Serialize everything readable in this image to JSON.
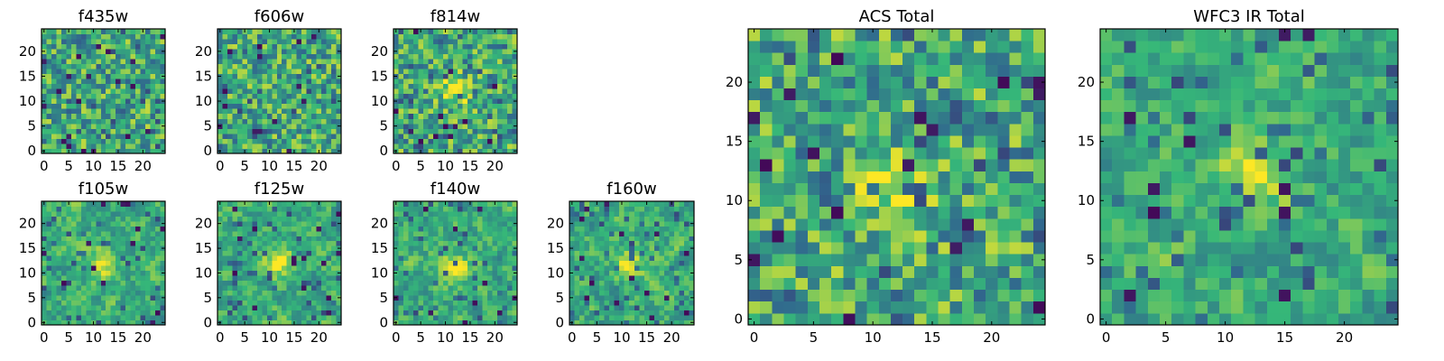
{
  "chart_data": {
    "type": "heatmap",
    "colormap": [
      "#440154",
      "#31688e",
      "#35b779",
      "#fde725"
    ],
    "panels": [
      {
        "title": "f435w",
        "grid_size": 25,
        "seed": 11,
        "smooth": 0,
        "hotspot": null,
        "xticks": [
          0,
          5,
          10,
          15,
          20
        ],
        "yticks": [
          0,
          5,
          10,
          15,
          20
        ],
        "xlim": [
          0,
          24
        ],
        "ylim": [
          0,
          24
        ]
      },
      {
        "title": "f606w",
        "grid_size": 25,
        "seed": 23,
        "smooth": 0,
        "hotspot": null,
        "xticks": [
          0,
          5,
          10,
          15,
          20
        ],
        "yticks": [
          0,
          5,
          10,
          15,
          20
        ],
        "xlim": [
          0,
          24
        ],
        "ylim": [
          0,
          24
        ]
      },
      {
        "title": "f814w",
        "grid_size": 25,
        "seed": 37,
        "smooth": 0,
        "hotspot": [
          12,
          12
        ],
        "xticks": [
          0,
          5,
          10,
          15,
          20
        ],
        "yticks": [
          0,
          5,
          10,
          15,
          20
        ],
        "xlim": [
          0,
          24
        ],
        "ylim": [
          0,
          24
        ]
      },
      {
        "title": "f105w",
        "grid_size": 25,
        "seed": 41,
        "smooth": 1,
        "hotspot": [
          12,
          12
        ],
        "xticks": [
          0,
          5,
          10,
          15,
          20
        ],
        "yticks": [
          0,
          5,
          10,
          15,
          20
        ],
        "xlim": [
          0,
          24
        ],
        "ylim": [
          0,
          24
        ]
      },
      {
        "title": "f125w",
        "grid_size": 25,
        "seed": 53,
        "smooth": 1,
        "hotspot": [
          12,
          12
        ],
        "xticks": [
          0,
          5,
          10,
          15,
          20
        ],
        "yticks": [
          0,
          5,
          10,
          15,
          20
        ],
        "xlim": [
          0,
          24
        ],
        "ylim": [
          0,
          24
        ]
      },
      {
        "title": "f140w",
        "grid_size": 25,
        "seed": 67,
        "smooth": 1,
        "hotspot": [
          12,
          11
        ],
        "xticks": [
          0,
          5,
          10,
          15,
          20
        ],
        "yticks": [
          0,
          5,
          10,
          15,
          20
        ],
        "xlim": [
          0,
          24
        ],
        "ylim": [
          0,
          24
        ]
      },
      {
        "title": "f160w",
        "grid_size": 25,
        "seed": 79,
        "smooth": 1,
        "hotspot": [
          12,
          12
        ],
        "xticks": [
          0,
          5,
          10,
          15,
          20
        ],
        "yticks": [
          0,
          5,
          10,
          15,
          20
        ],
        "xlim": [
          0,
          24
        ],
        "ylim": [
          0,
          24
        ]
      },
      {
        "title": "ACS Total",
        "grid_size": 25,
        "seed": 97,
        "smooth": 0,
        "hotspot": [
          12,
          11
        ],
        "xticks": [
          0,
          5,
          10,
          15,
          20
        ],
        "yticks": [
          0,
          5,
          10,
          15,
          20
        ],
        "xlim": [
          0,
          24
        ],
        "ylim": [
          0,
          24
        ]
      },
      {
        "title": "WFC3 IR Total",
        "grid_size": 25,
        "seed": 131,
        "smooth": 1,
        "hotspot": [
          12,
          12
        ],
        "xticks": [
          0,
          5,
          10,
          15,
          20
        ],
        "yticks": [
          0,
          5,
          10,
          15,
          20
        ],
        "xlim": [
          0,
          24
        ],
        "ylim": [
          0,
          24
        ]
      }
    ]
  }
}
